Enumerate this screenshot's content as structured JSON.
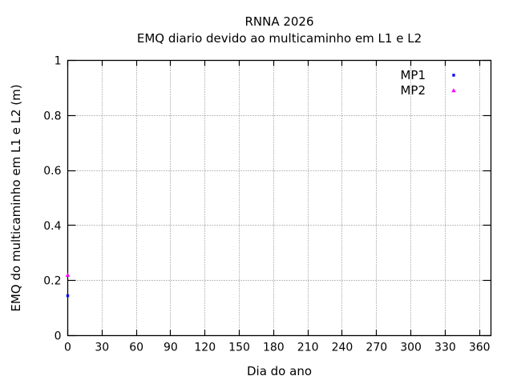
{
  "window": {
    "background": "#ffffff"
  },
  "chart_data": {
    "type": "scatter",
    "title": "RNNA 2026",
    "subtitle": "EMQ diario devido ao multicaminho em L1 e L2",
    "xlabel": "Dia do ano",
    "ylabel": "EMQ do multicaminho em L1 e L2 (m)",
    "xlim": [
      0,
      370
    ],
    "ylim": [
      0,
      1
    ],
    "xticks": [
      0,
      30,
      60,
      90,
      120,
      150,
      180,
      210,
      240,
      270,
      300,
      330,
      360
    ],
    "xtick_labels": [
      "0",
      "30",
      "60",
      "90",
      "120",
      "150",
      "180",
      "210",
      "240",
      "270",
      "300",
      "330",
      "360"
    ],
    "yticks": [
      0,
      0.2,
      0.4,
      0.6,
      0.8,
      1
    ],
    "ytick_labels": [
      "0",
      "0.2",
      "0.4",
      "0.6",
      "0.8",
      "1"
    ],
    "grid": true,
    "grid_color": "#7f7f7f",
    "axis_color": "#000000",
    "text_color": "#000000",
    "legend": {
      "position": "top-right-inside",
      "entries": [
        "MP1",
        "MP2"
      ]
    },
    "series": [
      {
        "name": "MP1",
        "color": "#0000ff",
        "marker": "square",
        "points": [
          {
            "x": 0,
            "y": 0.145
          }
        ]
      },
      {
        "name": "MP2",
        "color": "#ff00ff",
        "marker": "triangle",
        "points": [
          {
            "x": 0,
            "y": 0.22
          }
        ]
      }
    ]
  }
}
